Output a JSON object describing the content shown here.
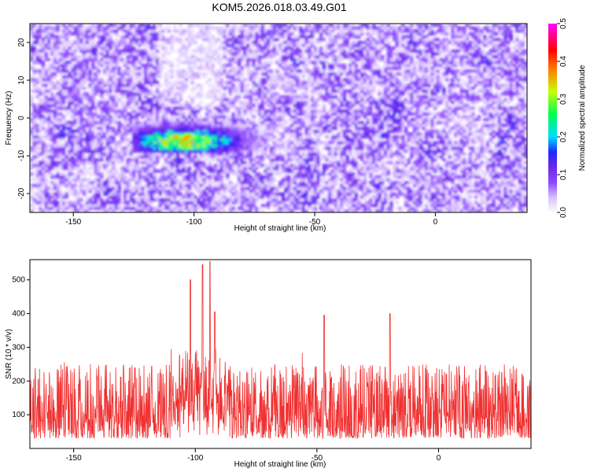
{
  "title": "KOM5.2026.018.03.49.G01",
  "chart_data": [
    {
      "type": "heatmap",
      "xlabel": "Height of straight line (km)",
      "ylabel": "Frequency (Hz)",
      "xlim": [
        -168,
        38
      ],
      "ylim": [
        -25,
        25
      ],
      "xticks": [
        -150,
        -100,
        -50,
        0
      ],
      "yticks": [
        -20,
        -10,
        0,
        10,
        20
      ],
      "colorbar": {
        "label": "Normalized spectral amplitude",
        "range": [
          0.0,
          0.5
        ],
        "ticks": [
          "0.0",
          "0.1",
          "0.2",
          "0.3",
          "0.4",
          "0.5"
        ],
        "colors": [
          "#ffffff",
          "#cc99ff",
          "#8000ff",
          "#0000ff",
          "#00ffff",
          "#00ff00",
          "#ffff00",
          "#ff0000",
          "#ff00ff"
        ]
      },
      "background_level": 0.1,
      "peak_region": {
        "x_range": [
          -125,
          -70
        ],
        "y_range": [
          -9,
          0
        ],
        "peak_value": 0.42,
        "peak_x": -104,
        "peak_y": -6
      }
    },
    {
      "type": "line",
      "xlabel": "Height of straight line (km)",
      "ylabel": "SNR (10 * v/v)",
      "xlim": [
        -168,
        38
      ],
      "ylim": [
        0,
        560
      ],
      "xticks": [
        -150,
        -100,
        -50,
        0
      ],
      "yticks": [
        100,
        200,
        300,
        400,
        500
      ],
      "color": "#f03030",
      "typical_range": [
        30,
        250
      ],
      "peaks": [
        {
          "x": -97,
          "y": 545
        },
        {
          "x": -94,
          "y": 555
        },
        {
          "x": -102,
          "y": 500
        },
        {
          "x": -92,
          "y": 405
        },
        {
          "x": -20,
          "y": 400
        },
        {
          "x": -47,
          "y": 395
        }
      ]
    }
  ]
}
